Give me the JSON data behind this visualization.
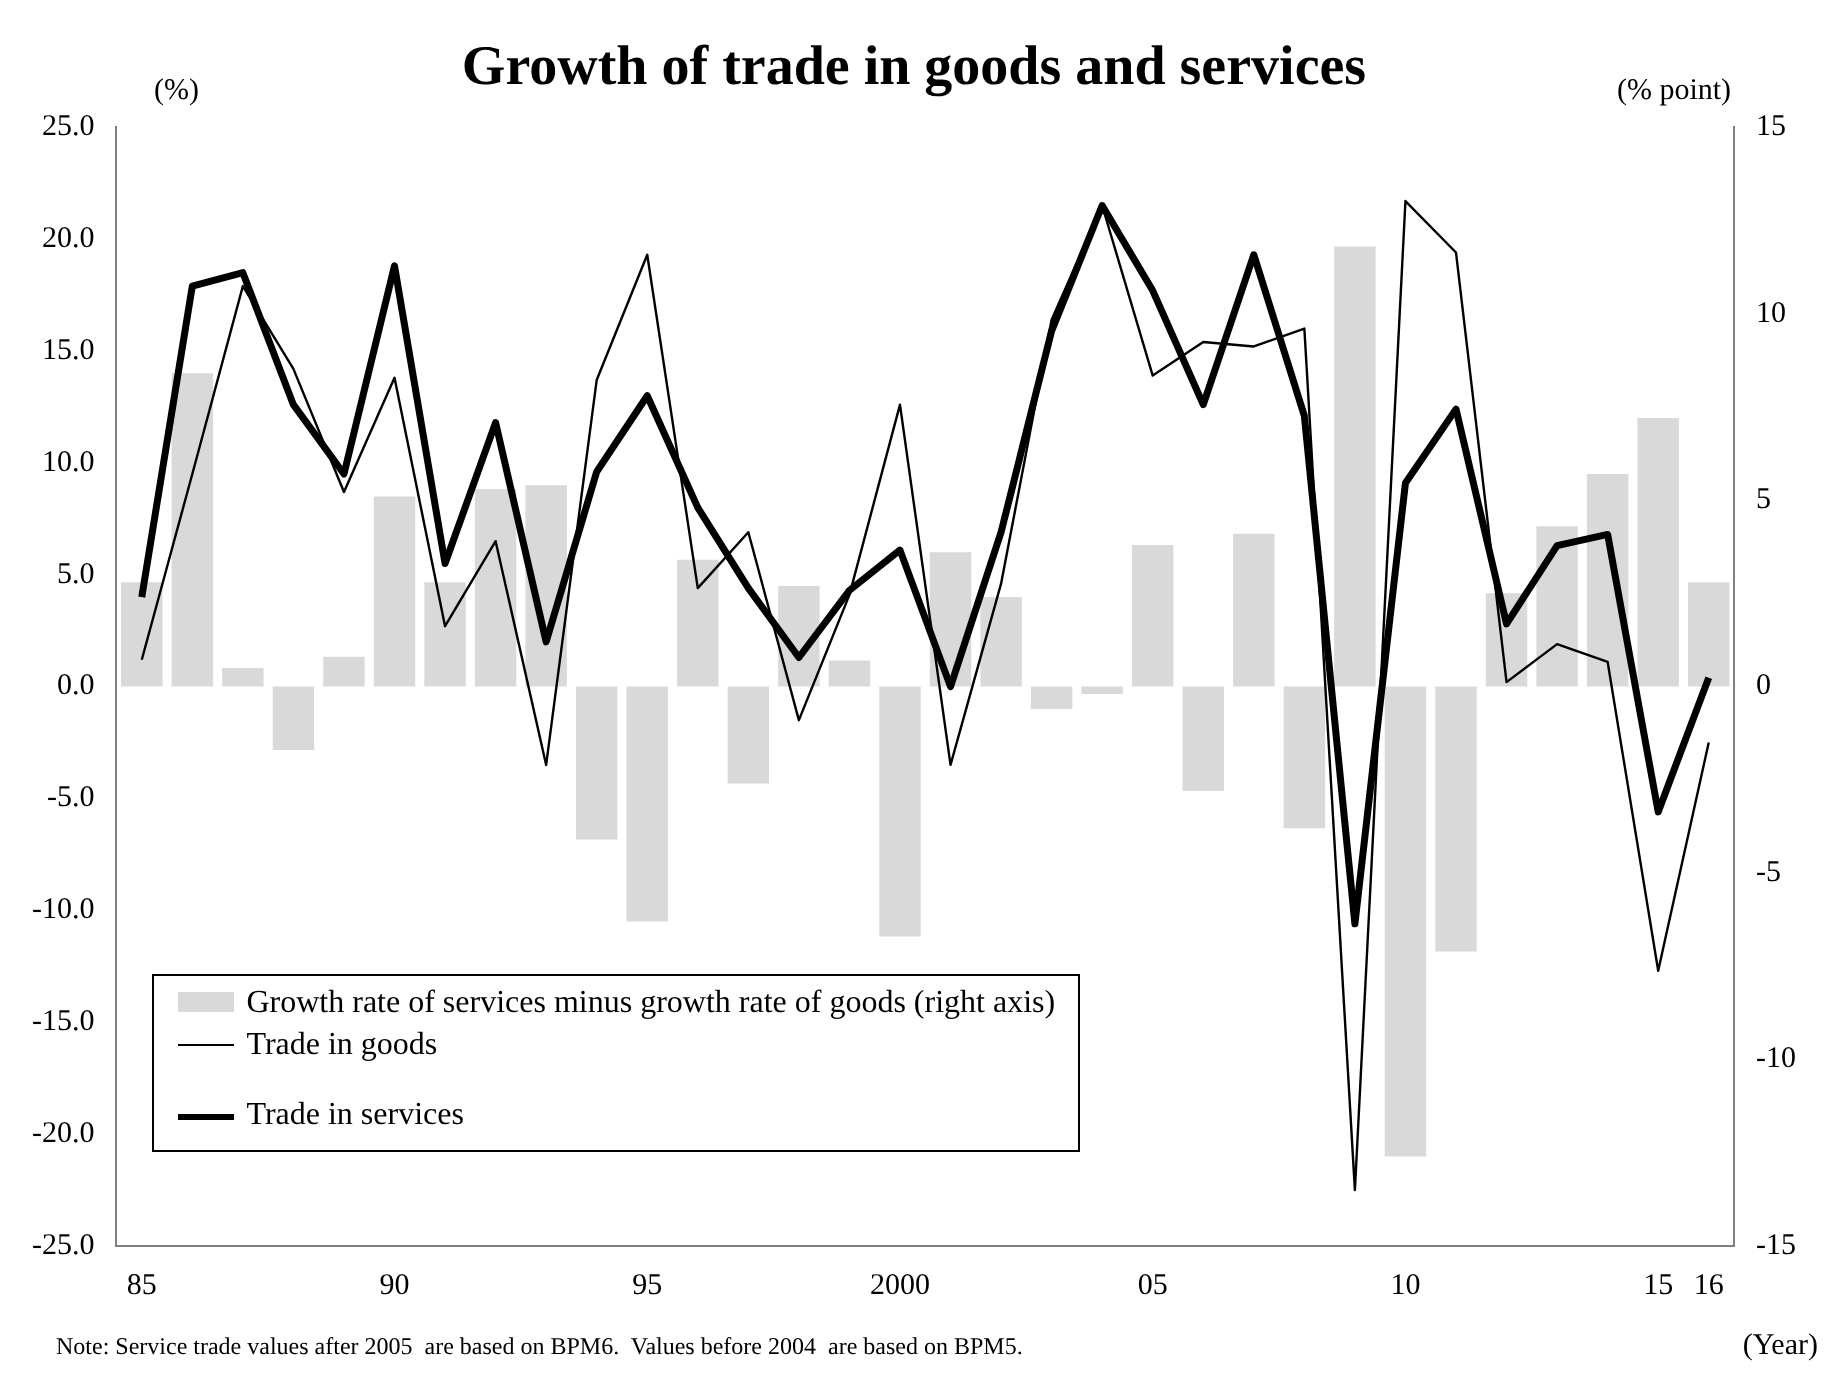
{
  "chart_data": {
    "type": "line",
    "title": "Growth of trade in goods and services",
    "ylabel": "(%)",
    "y2label": "(% point)",
    "xlabel": "(Year)",
    "categories": [
      "85",
      null,
      null,
      null,
      null,
      "90",
      null,
      null,
      null,
      null,
      "95",
      null,
      null,
      null,
      null,
      "2000",
      null,
      null,
      null,
      null,
      "05",
      null,
      null,
      null,
      null,
      "10",
      null,
      null,
      null,
      null,
      "15",
      "16"
    ],
    "series": [
      {
        "name": "Growth rate of services minus growth rate of goods (right axis)",
        "type": "bar",
        "axis": "y2",
        "color": "#d9d9d9",
        "values": [
          2.8,
          8.4,
          0.5,
          -1.7,
          0.8,
          5.1,
          2.8,
          5.3,
          5.4,
          -4.1,
          -6.3,
          3.4,
          -2.6,
          2.7,
          0.7,
          -6.7,
          3.6,
          2.4,
          -0.6,
          -0.2,
          3.8,
          -2.8,
          4.1,
          -3.8,
          11.8,
          -12.6,
          -7.1,
          2.5,
          4.3,
          5.7,
          7.2,
          2.8
        ]
      },
      {
        "name": "Trade in goods",
        "color": "#000000",
        "values": [
          1.2,
          9.5,
          17.9,
          14.2,
          8.7,
          13.8,
          2.7,
          6.5,
          -3.5,
          13.7,
          19.3,
          4.4,
          6.9,
          -1.5,
          4.1,
          12.6,
          -3.5,
          4.6,
          16.4,
          21.5,
          13.9,
          15.4,
          15.2,
          16.0,
          -22.5,
          21.7,
          19.4,
          0.2,
          1.9,
          1.1,
          -12.7,
          -2.5
        ]
      },
      {
        "name": "Trade in services",
        "color": "#000000",
        "values": [
          4.0,
          17.9,
          18.5,
          12.6,
          9.5,
          18.8,
          5.5,
          11.8,
          2.0,
          9.6,
          13.0,
          8.0,
          4.4,
          1.3,
          4.3,
          6.1,
          0.0,
          6.9,
          15.9,
          21.5,
          17.7,
          12.6,
          19.3,
          12.1,
          -10.6,
          9.1,
          12.4,
          2.8,
          6.3,
          6.8,
          -5.6,
          0.4
        ]
      }
    ],
    "ylim": [
      -25,
      25
    ],
    "yticks": [
      {
        "value": -25,
        "label": "-25.0"
      },
      {
        "value": -20,
        "label": "-20.0"
      },
      {
        "value": -15,
        "label": "-15.0"
      },
      {
        "value": -10,
        "label": "-10.0"
      },
      {
        "value": -5,
        "label": "-5.0"
      },
      {
        "value": 0,
        "label": "0.0"
      },
      {
        "value": 5,
        "label": "5.0"
      },
      {
        "value": 10,
        "label": "10.0"
      },
      {
        "value": 15,
        "label": "15.0"
      },
      {
        "value": 20,
        "label": "20.0"
      },
      {
        "value": 25,
        "label": "25.0"
      }
    ],
    "y2lim": [
      -15,
      15
    ],
    "y2ticks": [
      -15,
      -10,
      -5,
      0,
      5,
      10,
      15
    ],
    "legend": "bottom left",
    "annotations": [
      "Note: Service trade values after 2005  are based on BPM6.  Values before 2004  are based on BPM5."
    ]
  }
}
